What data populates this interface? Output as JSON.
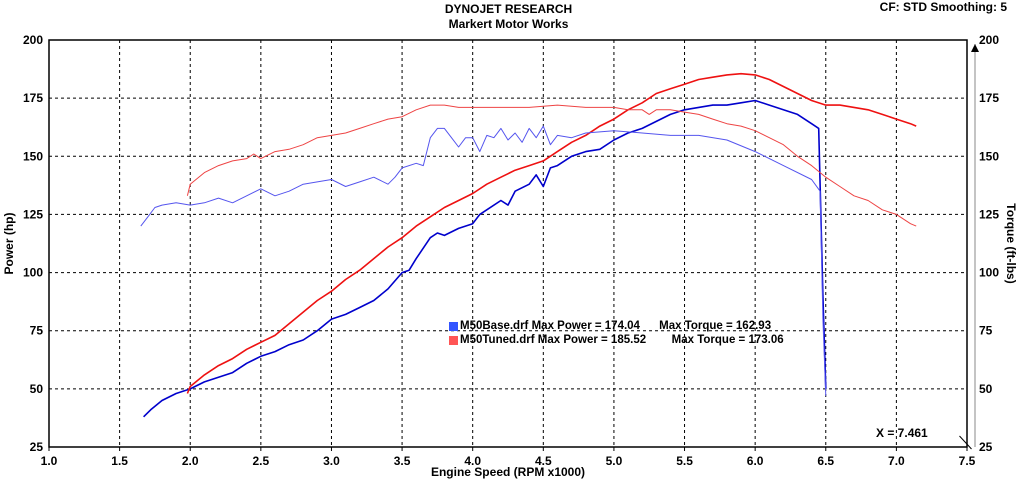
{
  "header": {
    "title": "DYNOJET RESEARCH",
    "subtitle": "Markert Motor Works",
    "settings": "CF: STD   Smoothing: 5"
  },
  "legend": [
    {
      "file": "M50Base.drf",
      "power_label": "Max Power = 174.04",
      "torque_label": "Max Torque = 162.93",
      "color": "#0000cc",
      "swatch": "#3355ff"
    },
    {
      "file": "M50Tuned.drf",
      "power_label": "Max Power = 185.52",
      "torque_label": "Max Torque = 173.06",
      "color": "#ee1111",
      "swatch": "#ff5555"
    }
  ],
  "cursor_readout": "X = 7.461",
  "chart_data": {
    "type": "line",
    "title": "DYNOJET RESEARCH",
    "subtitle": "Markert Motor Works",
    "xlabel": "Engine Speed (RPM x1000)",
    "ylabel_left": "Power (hp)",
    "ylabel_right": "Torque (ft-lbs)",
    "xlim": [
      1.0,
      7.5
    ],
    "ylim_left": [
      25,
      200
    ],
    "ylim_right": [
      25,
      200
    ],
    "x_ticks": [
      "1.0",
      "1.5",
      "2.0",
      "2.5",
      "3.0",
      "3.5",
      "4.0",
      "4.5",
      "5.0",
      "5.5",
      "6.0",
      "6.5",
      "7.0",
      "7.5"
    ],
    "y_ticks": [
      "25",
      "50",
      "75",
      "100",
      "125",
      "150",
      "175",
      "200"
    ],
    "grid": true,
    "series": [
      {
        "name": "M50Base.drf",
        "measure": "power",
        "color": "#0000cc",
        "x": [
          1.67,
          1.72,
          1.8,
          1.9,
          2.0,
          2.1,
          2.2,
          2.3,
          2.4,
          2.5,
          2.6,
          2.7,
          2.8,
          2.9,
          3.0,
          3.1,
          3.2,
          3.3,
          3.4,
          3.5,
          3.55,
          3.6,
          3.7,
          3.75,
          3.8,
          3.9,
          4.0,
          4.05,
          4.1,
          4.2,
          4.25,
          4.3,
          4.4,
          4.45,
          4.5,
          4.55,
          4.6,
          4.7,
          4.8,
          4.9,
          5.0,
          5.1,
          5.2,
          5.3,
          5.4,
          5.5,
          5.6,
          5.7,
          5.8,
          5.9,
          6.0,
          6.1,
          6.2,
          6.3,
          6.4,
          6.45,
          6.48,
          6.5
        ],
        "y": [
          38,
          41,
          45,
          48,
          50,
          53,
          55,
          57,
          61,
          64,
          66,
          69,
          71,
          75,
          80,
          82,
          85,
          88,
          93,
          100,
          101,
          106,
          115,
          117,
          116,
          119,
          121,
          125,
          127,
          131,
          129,
          135,
          138,
          142,
          137,
          145,
          146,
          150,
          152,
          153,
          157,
          160,
          162,
          165,
          168,
          170,
          171,
          172,
          172,
          173,
          174,
          172,
          170,
          168,
          164,
          162,
          90,
          50
        ]
      },
      {
        "name": "M50Tuned.drf",
        "measure": "power",
        "color": "#ee1111",
        "x": [
          1.98,
          2.0,
          2.1,
          2.2,
          2.3,
          2.4,
          2.5,
          2.6,
          2.7,
          2.8,
          2.9,
          3.0,
          3.1,
          3.2,
          3.3,
          3.4,
          3.5,
          3.6,
          3.7,
          3.8,
          3.9,
          4.0,
          4.1,
          4.2,
          4.3,
          4.4,
          4.5,
          4.6,
          4.7,
          4.8,
          4.9,
          5.0,
          5.1,
          5.2,
          5.3,
          5.4,
          5.5,
          5.6,
          5.7,
          5.8,
          5.9,
          6.0,
          6.1,
          6.2,
          6.3,
          6.4,
          6.5,
          6.6,
          6.7,
          6.8,
          6.9,
          7.0,
          7.1,
          7.14
        ],
        "y": [
          48,
          51,
          56,
          60,
          63,
          67,
          70,
          73,
          78,
          83,
          88,
          92,
          97,
          101,
          106,
          111,
          115,
          120,
          124,
          128,
          131,
          134,
          138,
          141,
          144,
          146,
          148,
          152,
          156,
          159,
          163,
          166,
          170,
          173,
          177,
          179,
          181,
          183,
          184,
          185,
          185.5,
          185,
          183,
          180,
          177,
          174,
          172,
          172,
          171,
          170,
          168,
          166,
          164,
          163
        ]
      },
      {
        "name": "M50Base.drf",
        "measure": "torque",
        "color": "#5555ee",
        "x": [
          1.65,
          1.7,
          1.75,
          1.8,
          1.9,
          2.0,
          2.1,
          2.2,
          2.3,
          2.4,
          2.5,
          2.6,
          2.7,
          2.8,
          2.9,
          3.0,
          3.1,
          3.2,
          3.3,
          3.4,
          3.45,
          3.5,
          3.6,
          3.65,
          3.7,
          3.75,
          3.8,
          3.85,
          3.9,
          3.95,
          4.0,
          4.05,
          4.1,
          4.15,
          4.2,
          4.25,
          4.3,
          4.35,
          4.4,
          4.45,
          4.5,
          4.55,
          4.6,
          4.7,
          4.8,
          5.0,
          5.2,
          5.4,
          5.6,
          5.8,
          6.0,
          6.2,
          6.4,
          6.46,
          6.48,
          6.5
        ],
        "y": [
          120,
          124,
          128,
          129,
          130,
          129,
          130,
          132,
          130,
          133,
          136,
          133,
          135,
          138,
          139,
          140,
          137,
          139,
          141,
          138,
          141,
          145,
          147,
          146,
          158,
          162,
          162,
          158,
          154,
          158,
          158,
          152,
          159,
          158,
          162,
          157,
          160,
          156,
          162,
          158,
          163,
          155,
          159,
          158,
          160,
          161,
          160,
          159,
          159,
          157,
          152,
          146,
          140,
          135,
          80,
          47
        ]
      },
      {
        "name": "M50Tuned.drf",
        "measure": "torque",
        "color": "#ee4444",
        "x": [
          1.98,
          2.0,
          2.1,
          2.2,
          2.3,
          2.4,
          2.45,
          2.5,
          2.6,
          2.7,
          2.8,
          2.9,
          3.0,
          3.1,
          3.2,
          3.3,
          3.4,
          3.5,
          3.6,
          3.7,
          3.8,
          3.9,
          4.0,
          4.2,
          4.4,
          4.6,
          4.8,
          5.0,
          5.1,
          5.2,
          5.25,
          5.3,
          5.4,
          5.5,
          5.6,
          5.7,
          5.8,
          5.9,
          6.0,
          6.1,
          6.2,
          6.3,
          6.4,
          6.5,
          6.6,
          6.7,
          6.8,
          6.9,
          7.0,
          7.1,
          7.14
        ],
        "y": [
          133,
          138,
          143,
          146,
          148,
          149,
          151,
          149,
          152,
          153,
          155,
          158,
          159,
          160,
          162,
          164,
          166,
          167,
          170,
          172,
          172,
          171,
          171,
          171,
          171,
          172,
          171,
          171,
          170,
          170,
          168,
          170,
          170,
          169,
          168,
          166,
          164,
          163,
          161,
          158,
          155,
          150,
          146,
          141,
          137,
          133,
          131,
          127,
          125,
          121,
          120
        ]
      }
    ]
  }
}
